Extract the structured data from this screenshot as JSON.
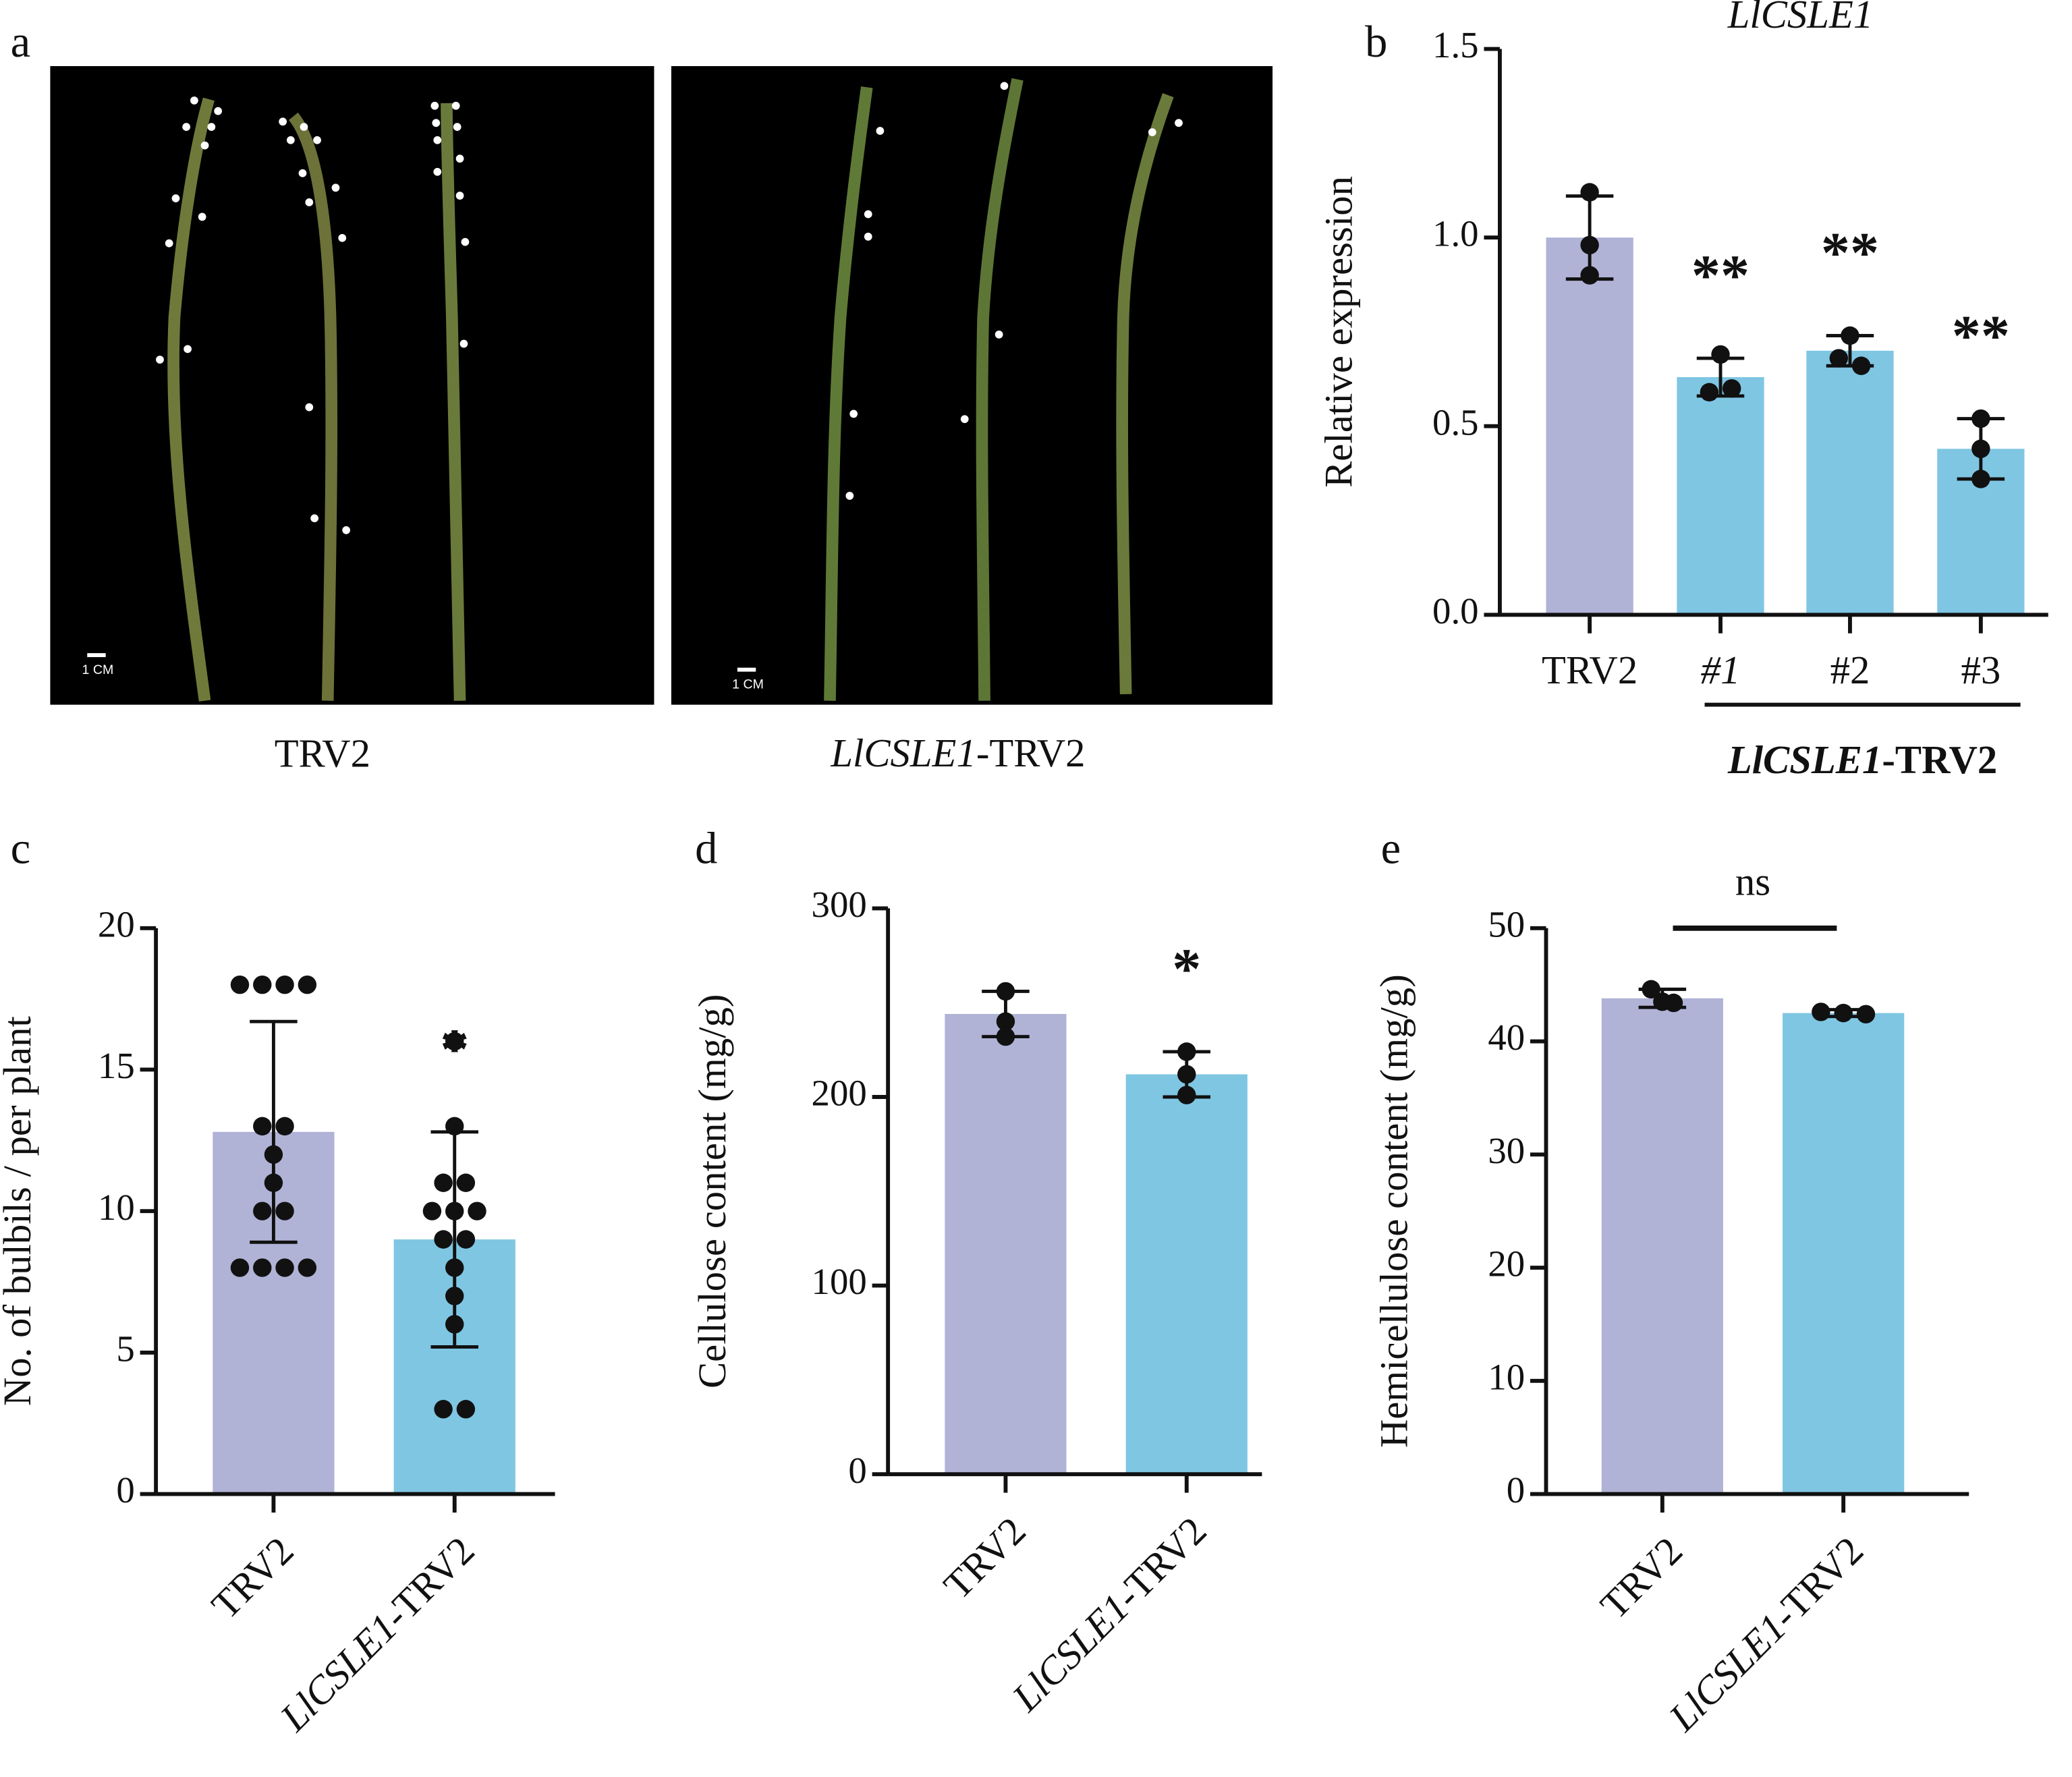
{
  "panel_labels": [
    "a",
    "b",
    "c",
    "d",
    "e"
  ],
  "photos": {
    "captions": [
      "TRV2",
      "LlCSLE1-TRV2"
    ],
    "scale_bar": "1 CM"
  },
  "chart_data": [
    {
      "type": "bar",
      "title": "LlCSLE1",
      "y_label": "Relative expression",
      "categories": [
        "TRV2",
        "#1",
        "#2",
        "#3"
      ],
      "values": [
        1.0,
        0.63,
        0.7,
        0.44
      ],
      "errors": [
        0.11,
        0.05,
        0.04,
        0.08
      ],
      "points": [
        [
          1.12,
          0.98,
          0.9
        ],
        [
          0.69,
          0.59,
          0.6
        ],
        [
          0.74,
          0.68,
          0.66
        ],
        [
          0.52,
          0.44,
          0.36
        ]
      ],
      "significance": [
        null,
        "**",
        "**",
        "**"
      ],
      "group_label": "LlCSLE1-TRV2",
      "colors": [
        "#b0b2d6",
        "#7fc6e3",
        "#7fc6e3",
        "#7fc6e3"
      ],
      "ylim": [
        0,
        1.5
      ],
      "yticks": [
        {
          "value": 0,
          "label": "0.0"
        },
        0.5,
        {
          "value": 1,
          "label": "1.0"
        },
        1.5
      ]
    },
    {
      "type": "bar",
      "y_label": "No. of bulbils / per plant",
      "categories": [
        "TRV2",
        "LlCSLE1-TRV2"
      ],
      "values": [
        12.8,
        9.0
      ],
      "errors": [
        3.9,
        3.8
      ],
      "points": [
        [
          18,
          18,
          18,
          18,
          13,
          13,
          12,
          11,
          10,
          10,
          8,
          8,
          8,
          8
        ],
        [
          16,
          13,
          11,
          11,
          10,
          10,
          10,
          9,
          9,
          8,
          7,
          6,
          3,
          3
        ]
      ],
      "significance": [
        null,
        "*"
      ],
      "colors": [
        "#b0b2d6",
        "#7fc6e3"
      ],
      "ylim": [
        0,
        20
      ],
      "yticks": [
        0,
        5,
        10,
        15,
        20
      ]
    },
    {
      "type": "bar",
      "y_label": "Cellulose content (mg/g)",
      "categories": [
        "TRV2",
        "LlCSLE1-TRV2"
      ],
      "values": [
        244,
        212
      ],
      "errors": [
        12,
        12
      ],
      "points": [
        [
          256,
          240,
          232
        ],
        [
          224,
          212,
          201
        ]
      ],
      "significance": [
        null,
        "*"
      ],
      "colors": [
        "#b0b2d6",
        "#7fc6e3"
      ],
      "ylim": [
        0,
        300
      ],
      "yticks": [
        0,
        100,
        200,
        300
      ]
    },
    {
      "type": "bar",
      "y_label": "Hemicellulose content (mg/g)",
      "categories": [
        "TRV2",
        "LlCSLE1-TRV2"
      ],
      "values": [
        43.8,
        42.5
      ],
      "errors": [
        0.8,
        0.3
      ],
      "points": [
        [
          44.6,
          43.5,
          43.4
        ],
        [
          42.6,
          42.5,
          42.4
        ]
      ],
      "comparison_label": "ns",
      "colors": [
        "#b0b2d6",
        "#7fc6e3"
      ],
      "ylim": [
        0,
        50
      ],
      "yticks": [
        0,
        10,
        20,
        30,
        40,
        50
      ]
    }
  ]
}
